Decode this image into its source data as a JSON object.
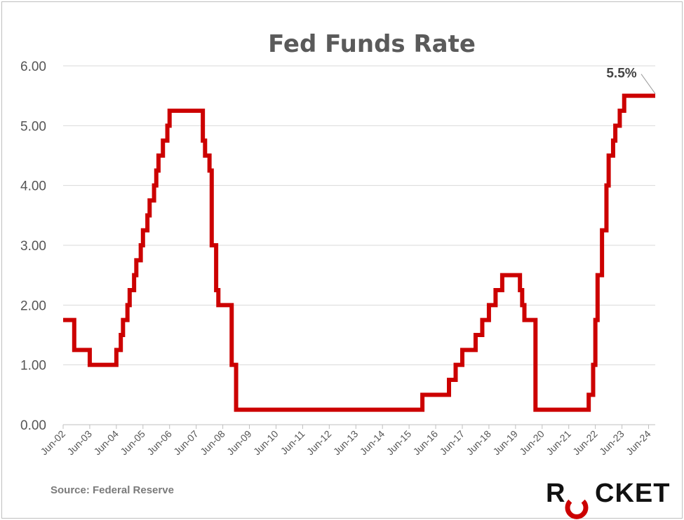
{
  "chart_data": {
    "type": "line",
    "title": "Fed Funds Rate",
    "xlabel": "",
    "ylabel": "",
    "ylim": [
      0,
      6
    ],
    "yticks": [
      "0.00",
      "1.00",
      "2.00",
      "3.00",
      "4.00",
      "5.00",
      "6.00"
    ],
    "xticks": [
      "Jun-02",
      "Jun-03",
      "Jun-04",
      "Jun-05",
      "Jun-06",
      "Jun-07",
      "Jun-08",
      "Jun-09",
      "Jun-10",
      "Jun-11",
      "Jun-12",
      "Jun-13",
      "Jun-14",
      "Jun-15",
      "Jun-16",
      "Jun-17",
      "Jun-18",
      "Jun-19",
      "Jun-20",
      "Jun-21",
      "Jun-22",
      "Jun-23",
      "Jun-24"
    ],
    "grid": true,
    "line_color": "#cc0000",
    "series": [
      {
        "name": "",
        "steps": [
          [
            "Jun-02",
            1.75
          ],
          [
            "Nov-02",
            1.25
          ],
          [
            "Jun-03",
            1.0
          ],
          [
            "Jun-04",
            1.25
          ],
          [
            "Aug-04",
            1.5
          ],
          [
            "Sep-04",
            1.75
          ],
          [
            "Nov-04",
            2.0
          ],
          [
            "Dec-04",
            2.25
          ],
          [
            "Feb-05",
            2.5
          ],
          [
            "Mar-05",
            2.75
          ],
          [
            "May-05",
            3.0
          ],
          [
            "Jun-05",
            3.25
          ],
          [
            "Aug-05",
            3.5
          ],
          [
            "Sep-05",
            3.75
          ],
          [
            "Nov-05",
            4.0
          ],
          [
            "Dec-05",
            4.25
          ],
          [
            "Jan-06",
            4.5
          ],
          [
            "Mar-06",
            4.75
          ],
          [
            "May-06",
            5.0
          ],
          [
            "Jun-06",
            5.25
          ],
          [
            "Sep-07",
            4.75
          ],
          [
            "Oct-07",
            4.5
          ],
          [
            "Dec-07",
            4.25
          ],
          [
            "Jan-08",
            3.5
          ],
          [
            "Jan-08",
            3.0
          ],
          [
            "Mar-08",
            2.25
          ],
          [
            "Apr-08",
            2.0
          ],
          [
            "Oct-08",
            1.5
          ],
          [
            "Oct-08",
            1.0
          ],
          [
            "Dec-08",
            0.25
          ],
          [
            "Dec-15",
            0.5
          ],
          [
            "Dec-16",
            0.75
          ],
          [
            "Mar-17",
            1.0
          ],
          [
            "Jun-17",
            1.25
          ],
          [
            "Dec-17",
            1.5
          ],
          [
            "Mar-18",
            1.75
          ],
          [
            "Jun-18",
            2.0
          ],
          [
            "Sep-18",
            2.25
          ],
          [
            "Dec-18",
            2.5
          ],
          [
            "Aug-19",
            2.25
          ],
          [
            "Sep-19",
            2.0
          ],
          [
            "Oct-19",
            1.75
          ],
          [
            "Mar-20",
            1.25
          ],
          [
            "Mar-20",
            0.25
          ],
          [
            "Mar-22",
            0.5
          ],
          [
            "May-22",
            1.0
          ],
          [
            "Jun-22",
            1.75
          ],
          [
            "Jul-22",
            2.5
          ],
          [
            "Sep-22",
            3.25
          ],
          [
            "Nov-22",
            4.0
          ],
          [
            "Dec-22",
            4.5
          ],
          [
            "Feb-23",
            4.75
          ],
          [
            "Mar-23",
            5.0
          ],
          [
            "May-23",
            5.25
          ],
          [
            "Jul-23",
            5.5
          ],
          [
            "Sep-24",
            5.5
          ]
        ]
      }
    ],
    "annotations": [
      {
        "text": "5.5%",
        "x": "Sep-24",
        "y": 5.5
      }
    ]
  },
  "source": "Source: Federal Reserve",
  "logo": {
    "text_pre": "R",
    "text_post": "CKET",
    "mark_color": "#cc0000"
  }
}
